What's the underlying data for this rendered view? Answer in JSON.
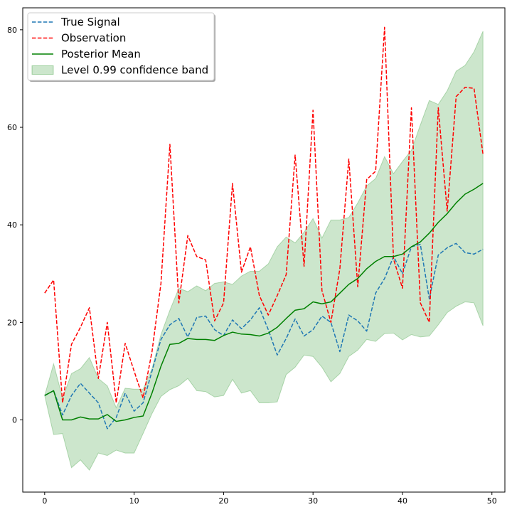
{
  "chart_data": {
    "type": "line",
    "title": "",
    "xlabel": "",
    "ylabel": "",
    "xlim": [
      -2.45,
      51.45
    ],
    "ylim": [
      -14.8,
      84.5
    ],
    "xticks": [
      0,
      10,
      20,
      30,
      40,
      50
    ],
    "yticks": [
      0,
      20,
      40,
      60,
      80
    ],
    "grid": false,
    "legend_position": "top-left",
    "x": [
      0,
      1,
      2,
      3,
      4,
      5,
      6,
      7,
      8,
      9,
      10,
      11,
      12,
      13,
      14,
      15,
      16,
      17,
      18,
      19,
      20,
      21,
      22,
      23,
      24,
      25,
      26,
      27,
      28,
      29,
      30,
      31,
      32,
      33,
      34,
      35,
      36,
      37,
      38,
      39,
      40,
      41,
      42,
      43,
      44,
      45,
      46,
      47,
      48,
      49
    ],
    "series": [
      {
        "name": "True Signal",
        "color": "#1f77b4",
        "style": "dashed",
        "values": [
          5,
          6,
          1,
          5,
          7.5,
          5.5,
          3.5,
          -1.8,
          0.5,
          5.5,
          1.8,
          3.5,
          10,
          16.5,
          19.5,
          20.8,
          17,
          21,
          21.3,
          18.5,
          17.3,
          20.5,
          18.7,
          20.5,
          23,
          18.5,
          13.3,
          16.7,
          20.7,
          17.2,
          18.5,
          21.3,
          20,
          14,
          21.5,
          20.3,
          18.2,
          26,
          29,
          33.5,
          30,
          35.5,
          36,
          24.8,
          33.8,
          35.3,
          36.2,
          34.3,
          34,
          35
        ]
      },
      {
        "name": "Observation",
        "color": "#ff0000",
        "style": "dashed",
        "values": [
          26,
          28.7,
          3.5,
          15.5,
          19,
          23,
          8.5,
          20,
          3.5,
          15.7,
          10,
          4.5,
          14,
          28,
          56.5,
          24,
          37.8,
          33.5,
          32.8,
          20.3,
          24,
          48.5,
          30.3,
          35.5,
          25.5,
          21.5,
          25.5,
          29.8,
          54.3,
          31.5,
          63.5,
          26.5,
          20,
          31,
          53.5,
          27.3,
          49.3,
          51,
          80.5,
          33,
          27,
          64,
          24,
          20,
          64,
          42.8,
          66.3,
          68.2,
          68,
          54.5
        ]
      },
      {
        "name": "Posterior Mean",
        "color": "#008000",
        "style": "solid",
        "values": [
          5,
          6,
          0,
          0,
          0.6,
          0.2,
          0.2,
          1.1,
          -0.3,
          0,
          0.5,
          0.8,
          5.5,
          11,
          15.5,
          15.7,
          16.7,
          16.5,
          16.5,
          16.3,
          17.3,
          18,
          17.6,
          17.5,
          17.2,
          17.8,
          19,
          20.8,
          22.5,
          22.8,
          24.2,
          23.8,
          24.2,
          26,
          27.8,
          29,
          31,
          32.5,
          33.5,
          33.5,
          34,
          35.5,
          36.5,
          38.3,
          40.5,
          42.3,
          44.5,
          46.3,
          47.3,
          48.5
        ]
      }
    ],
    "band": {
      "name": "Level 0.99 confidence band",
      "color": "#008000",
      "opacity": 0.2,
      "upper": [
        5,
        11.5,
        4.5,
        9.5,
        10.5,
        12.8,
        8.5,
        7,
        2.5,
        6.5,
        6.3,
        6.3,
        10.5,
        17.5,
        22.5,
        27,
        26.3,
        27.5,
        26.5,
        28,
        28.3,
        27.8,
        29.5,
        30.5,
        30.5,
        32,
        35.5,
        37.5,
        36.3,
        38.5,
        41.3,
        37.3,
        41,
        41,
        41.5,
        44.5,
        48,
        49.5,
        54,
        50.5,
        53,
        55.3,
        60.5,
        65.5,
        64.7,
        67.5,
        71.5,
        72.7,
        75.5,
        79.7
      ],
      "lower": [
        5,
        -3,
        -2.8,
        -9.8,
        -8.2,
        -10.3,
        -6.8,
        -7.3,
        -6.2,
        -6.8,
        -6.8,
        -2.8,
        1.3,
        4.8,
        6.2,
        7,
        8.5,
        6,
        5.8,
        4.7,
        5,
        8.3,
        5.5,
        6,
        3.5,
        3.5,
        3.7,
        9.3,
        10.8,
        13.3,
        13,
        10.8,
        7.8,
        9.5,
        13,
        14.3,
        16.5,
        16.1,
        17.7,
        17.8,
        16.4,
        17.5,
        17,
        17.2,
        19.5,
        22,
        23.3,
        24.2,
        24,
        19.3
      ]
    },
    "legend": [
      {
        "label": "True Signal",
        "kind": "line",
        "color": "#1f77b4",
        "style": "dashed"
      },
      {
        "label": "Observation",
        "kind": "line",
        "color": "#ff0000",
        "style": "dashed"
      },
      {
        "label": "Posterior Mean",
        "kind": "line",
        "color": "#008000",
        "style": "solid"
      },
      {
        "label": "Level 0.99 confidence band",
        "kind": "patch",
        "color": "#008000"
      }
    ]
  }
}
